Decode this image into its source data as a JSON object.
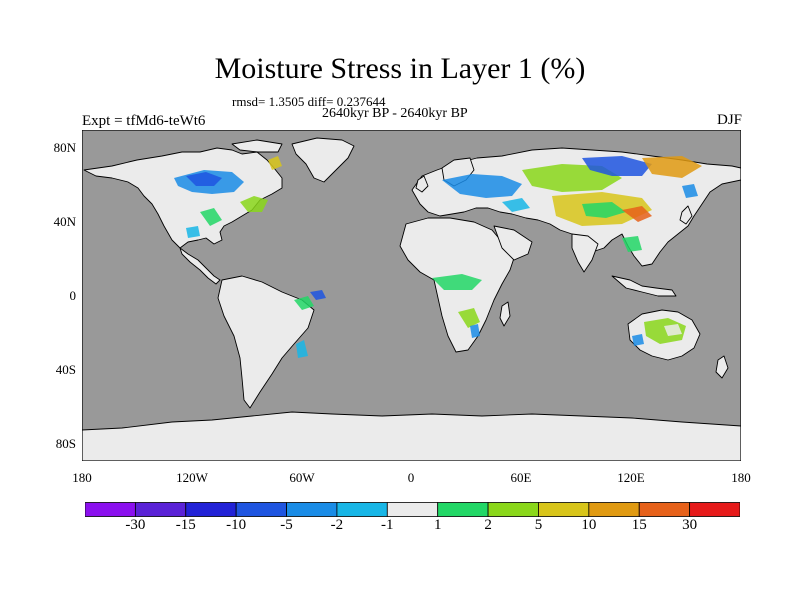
{
  "title": "Moisture Stress in Layer 1 (%)",
  "stats": "rmsd= 1.3505 diff= 0.237644",
  "period": "2640kyr BP - 2640kyr BP",
  "experiment": "Expt = tfMd6-teWt6",
  "season": "DJF",
  "map": {
    "ocean_color": "#999999",
    "land_color": "#ebebeb",
    "y_axis_labels": [
      "80N",
      "40N",
      "0",
      "40S",
      "80S"
    ],
    "x_axis_labels": [
      "180",
      "120W",
      "60W",
      "0",
      "60E",
      "120E",
      "180"
    ]
  },
  "colorbar": {
    "colors": [
      "#8b10ee",
      "#5a22d6",
      "#2222d6",
      "#1f55e0",
      "#1a8ce6",
      "#18b6e6",
      "#ebebeb",
      "#22d766",
      "#8ad71a",
      "#d8c51a",
      "#e09a12",
      "#e6611a",
      "#e61a1a"
    ],
    "labels": [
      "-30",
      "-15",
      "-10",
      "-5",
      "-2",
      "-1",
      "1",
      "2",
      "5",
      "10",
      "15",
      "30"
    ]
  }
}
